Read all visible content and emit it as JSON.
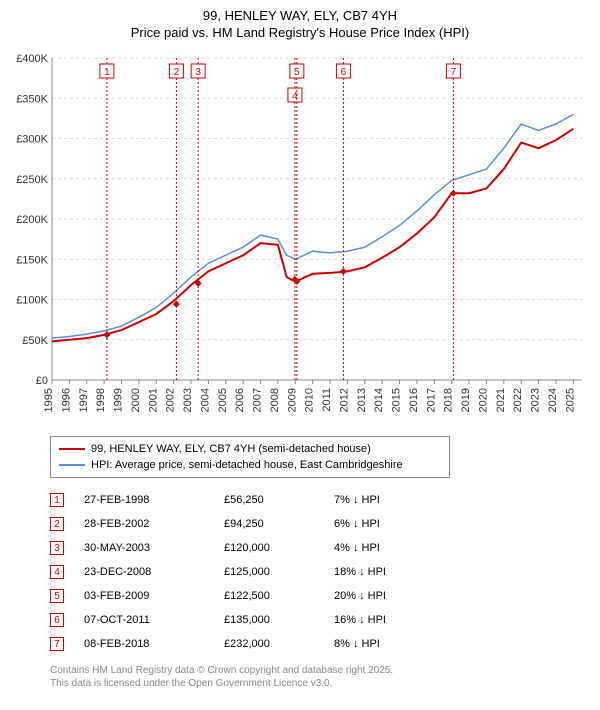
{
  "title_line1": "99, HENLEY WAY, ELY, CB7 4YH",
  "title_line2": "Price paid vs. HM Land Registry's House Price Index (HPI)",
  "chart": {
    "type": "line",
    "background_color": "#ffffff",
    "grid_color": "#d9d9d9",
    "grid_dash": "3,3",
    "axis_color": "#888888",
    "tick_fontsize": 11,
    "x_years": [
      1995,
      1996,
      1997,
      1998,
      1999,
      2000,
      2001,
      2002,
      2003,
      2004,
      2005,
      2006,
      2007,
      2008,
      2009,
      2010,
      2011,
      2012,
      2013,
      2014,
      2015,
      2016,
      2017,
      2018,
      2019,
      2020,
      2021,
      2022,
      2023,
      2024,
      2025
    ],
    "xlim": [
      1995,
      2025.5
    ],
    "y_ticks": [
      0,
      50000,
      100000,
      150000,
      200000,
      250000,
      300000,
      350000,
      400000
    ],
    "y_tick_labels": [
      "£0",
      "£50K",
      "£100K",
      "£150K",
      "£200K",
      "£250K",
      "£300K",
      "£350K",
      "£400K"
    ],
    "ylim": [
      0,
      400000
    ],
    "series": [
      {
        "name": "HPI: Average price, semi-detached house, East Cambridgeshire",
        "color": "#5b8fd6",
        "line_width": 1.5,
        "points": [
          [
            1995,
            52000
          ],
          [
            1996,
            54000
          ],
          [
            1997,
            57000
          ],
          [
            1998,
            61000
          ],
          [
            1999,
            67000
          ],
          [
            2000,
            78000
          ],
          [
            2001,
            90000
          ],
          [
            2002,
            108000
          ],
          [
            2003,
            128000
          ],
          [
            2004,
            145000
          ],
          [
            2005,
            155000
          ],
          [
            2006,
            165000
          ],
          [
            2007,
            180000
          ],
          [
            2008,
            175000
          ],
          [
            2008.5,
            155000
          ],
          [
            2009,
            150000
          ],
          [
            2010,
            160000
          ],
          [
            2011,
            158000
          ],
          [
            2012,
            160000
          ],
          [
            2013,
            165000
          ],
          [
            2014,
            178000
          ],
          [
            2015,
            192000
          ],
          [
            2016,
            210000
          ],
          [
            2017,
            230000
          ],
          [
            2018,
            248000
          ],
          [
            2019,
            255000
          ],
          [
            2020,
            262000
          ],
          [
            2021,
            288000
          ],
          [
            2022,
            318000
          ],
          [
            2023,
            310000
          ],
          [
            2024,
            318000
          ],
          [
            2025,
            330000
          ]
        ]
      },
      {
        "name": "99, HENLEY WAY, ELY, CB7 4YH (semi-detached house)",
        "color": "#d00000",
        "line_width": 2,
        "points": [
          [
            1995,
            48000
          ],
          [
            1996,
            50000
          ],
          [
            1997,
            52000
          ],
          [
            1998,
            56000
          ],
          [
            1999,
            62000
          ],
          [
            2000,
            72000
          ],
          [
            2001,
            82000
          ],
          [
            2002,
            98000
          ],
          [
            2003,
            118000
          ],
          [
            2004,
            135000
          ],
          [
            2005,
            145000
          ],
          [
            2006,
            155000
          ],
          [
            2007,
            170000
          ],
          [
            2008,
            168000
          ],
          [
            2008.5,
            128000
          ],
          [
            2009,
            122000
          ],
          [
            2010,
            132000
          ],
          [
            2011,
            133000
          ],
          [
            2012,
            135000
          ],
          [
            2013,
            140000
          ],
          [
            2014,
            152000
          ],
          [
            2015,
            165000
          ],
          [
            2016,
            182000
          ],
          [
            2017,
            202000
          ],
          [
            2018,
            232000
          ],
          [
            2019,
            232000
          ],
          [
            2020,
            238000
          ],
          [
            2021,
            262000
          ],
          [
            2022,
            295000
          ],
          [
            2023,
            288000
          ],
          [
            2024,
            298000
          ],
          [
            2025,
            312000
          ]
        ],
        "markers": [
          {
            "n": 1,
            "x": 1998.16,
            "y": 56250
          },
          {
            "n": 2,
            "x": 2002.16,
            "y": 94250
          },
          {
            "n": 3,
            "x": 2003.41,
            "y": 120000
          },
          {
            "n": 4,
            "x": 2008.98,
            "y": 125000
          },
          {
            "n": 5,
            "x": 2009.09,
            "y": 122500
          },
          {
            "n": 6,
            "x": 2011.77,
            "y": 135000
          },
          {
            "n": 7,
            "x": 2018.1,
            "y": 232000
          }
        ],
        "label_y_offsets": {
          "1": 0,
          "2": 0,
          "3": 0,
          "4": 24,
          "5": 0,
          "6": 0,
          "7": 0
        }
      }
    ],
    "marker_style": {
      "point_shape": "diamond",
      "point_size": 7,
      "point_color": "#d00000",
      "vline_color": "#d00000",
      "vline_dash": "2,2",
      "label_box_border": "#d00000",
      "label_box_fill": "#ffffff",
      "label_fontsize": 10,
      "label_color": "#d00000"
    }
  },
  "legend": [
    {
      "color": "#d00000",
      "width": 2,
      "label": "99, HENLEY WAY, ELY, CB7 4YH (semi-detached house)"
    },
    {
      "color": "#5b8fd6",
      "width": 1.5,
      "label": "HPI: Average price, semi-detached house, East Cambridgeshire"
    }
  ],
  "sales": [
    {
      "n": "1",
      "date": "27-FEB-1998",
      "price": "£56,250",
      "delta": "7% ↓ HPI"
    },
    {
      "n": "2",
      "date": "28-FEB-2002",
      "price": "£94,250",
      "delta": "6% ↓ HPI"
    },
    {
      "n": "3",
      "date": "30-MAY-2003",
      "price": "£120,000",
      "delta": "4% ↓ HPI"
    },
    {
      "n": "4",
      "date": "23-DEC-2008",
      "price": "£125,000",
      "delta": "18% ↓ HPI"
    },
    {
      "n": "5",
      "date": "03-FEB-2009",
      "price": "£122,500",
      "delta": "20% ↓ HPI"
    },
    {
      "n": "6",
      "date": "07-OCT-2011",
      "price": "£135,000",
      "delta": "16% ↓ HPI"
    },
    {
      "n": "7",
      "date": "08-FEB-2018",
      "price": "£232,000",
      "delta": "8% ↓ HPI"
    }
  ],
  "footer_line1": "Contains HM Land Registry data © Crown copyright and database right 2025.",
  "footer_line2": "This data is licensed under the Open Government Licence v3.0."
}
